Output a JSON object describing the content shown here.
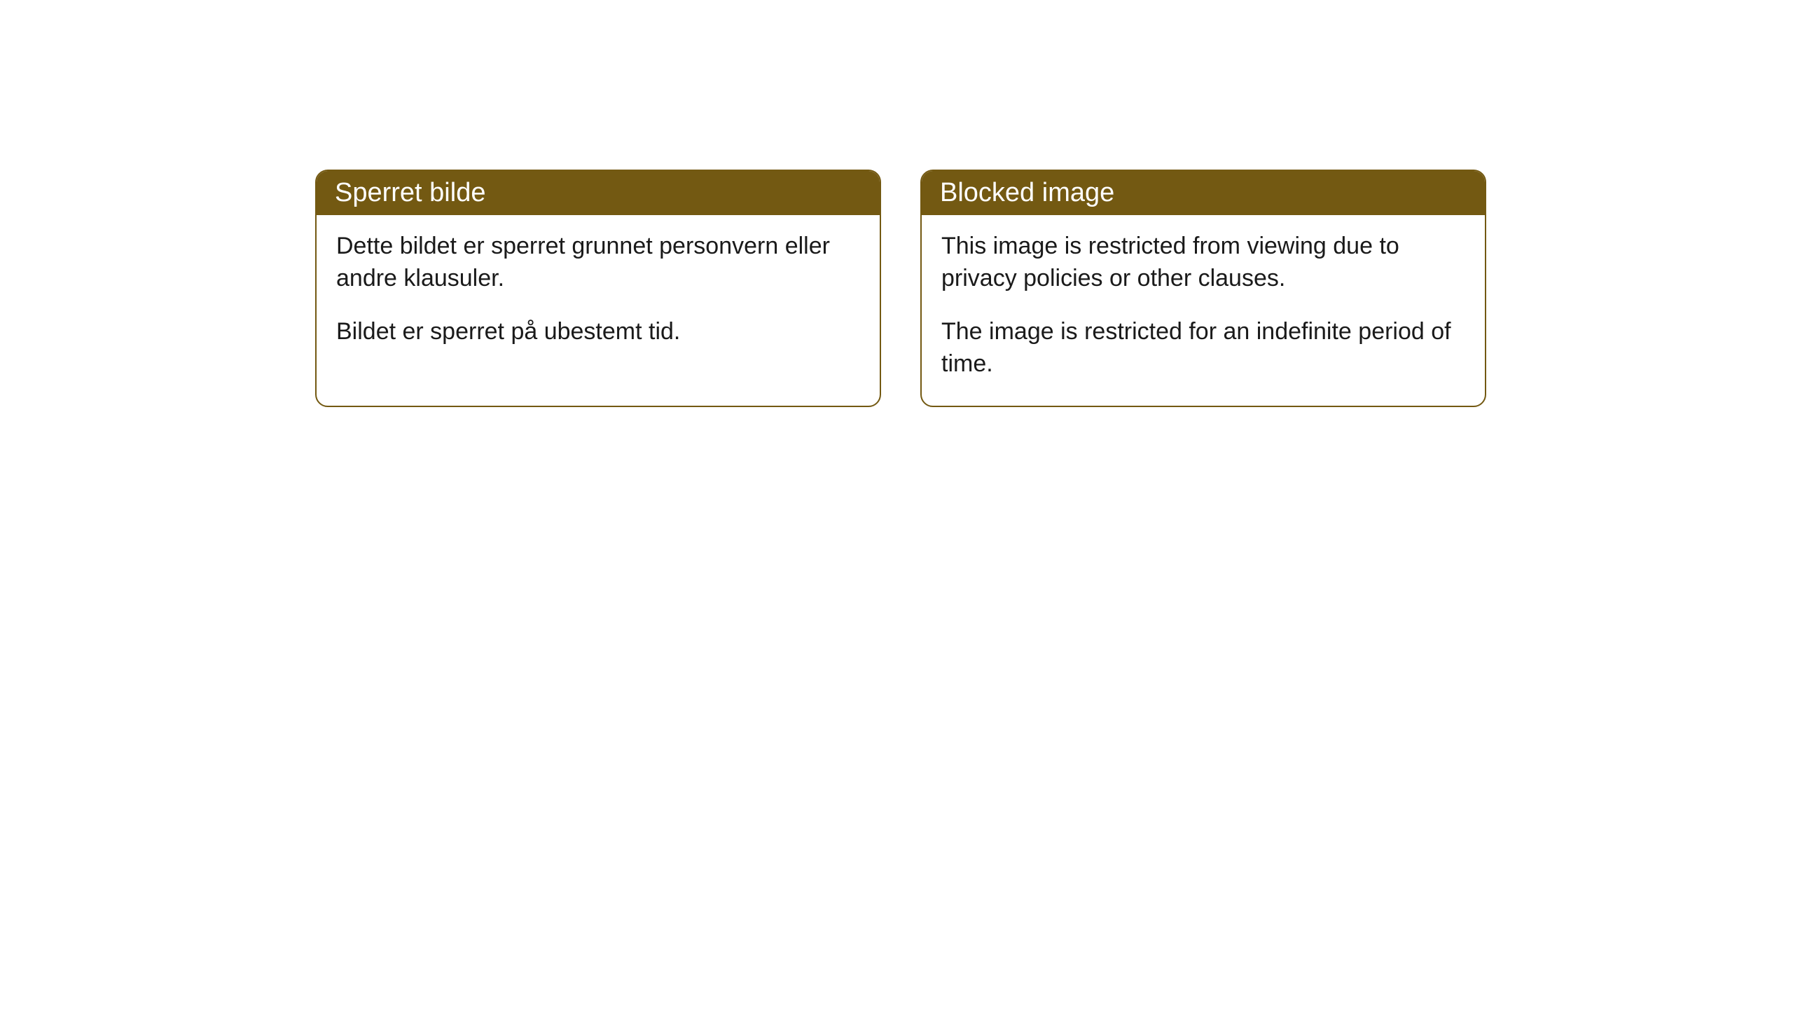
{
  "cards": [
    {
      "title": "Sperret bilde",
      "paragraph1": "Dette bildet er sperret grunnet personvern eller andre klausuler.",
      "paragraph2": "Bildet er sperret på ubestemt tid."
    },
    {
      "title": "Blocked image",
      "paragraph1": "This image is restricted from viewing due to privacy policies or other clauses.",
      "paragraph2": "The image is restricted for an indefinite period of time."
    }
  ],
  "style": {
    "header_bg_color": "#735912",
    "header_text_color": "#ffffff",
    "border_color": "#735912",
    "body_bg_color": "#ffffff",
    "body_text_color": "#1a1a1a",
    "border_radius": 18,
    "title_fontsize": 38,
    "body_fontsize": 34
  }
}
